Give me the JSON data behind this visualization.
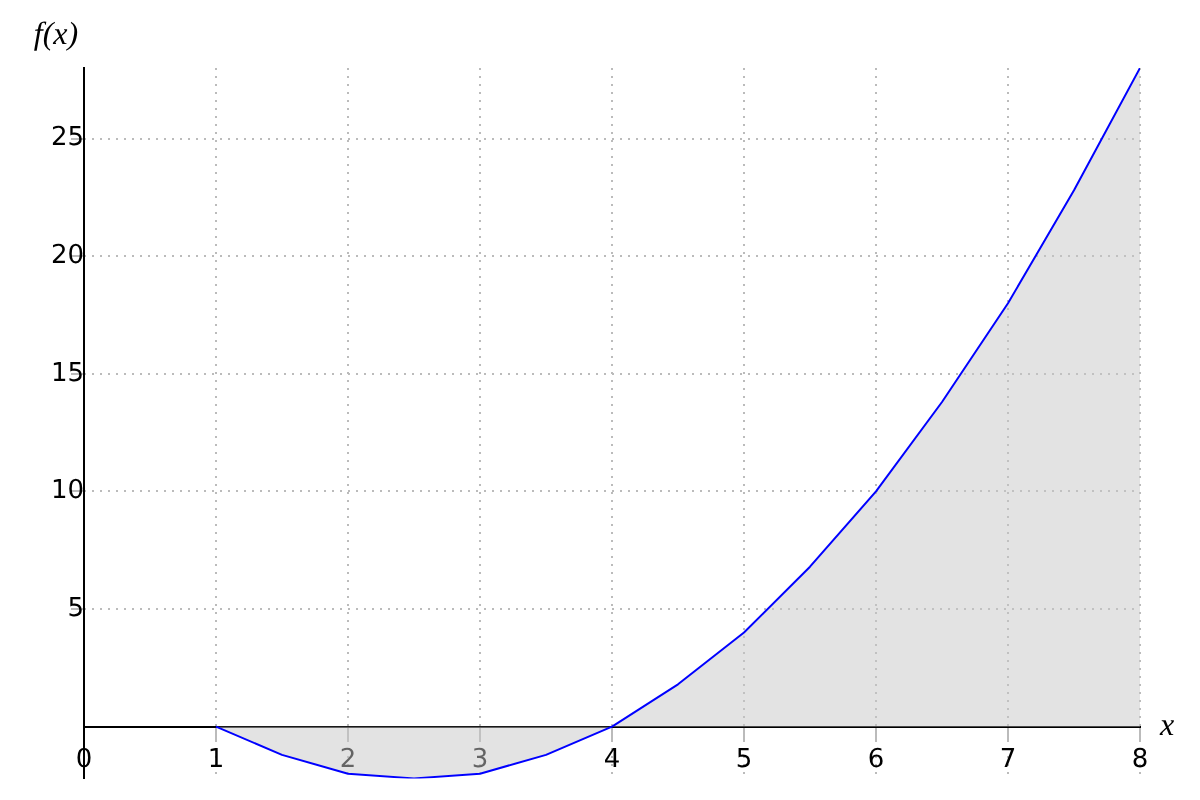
{
  "chart_data": {
    "type": "area",
    "xlabel": "x",
    "ylabel": "f(x)",
    "x": [
      1,
      1.5,
      2,
      2.5,
      3,
      3.5,
      4,
      4.5,
      5,
      5.5,
      6,
      6.5,
      7,
      7.5,
      8
    ],
    "series": [
      {
        "color": "#0000ff",
        "values": [
          0,
          -1.2,
          -2,
          -2.2,
          -2,
          -1.2,
          0,
          1.8,
          4,
          6.8,
          10,
          13.8,
          18,
          22.8,
          28
        ]
      }
    ],
    "xlim": [
      0,
      8
    ],
    "xticks": [
      0,
      1,
      2,
      3,
      4,
      5,
      6,
      7,
      8
    ],
    "ylim": [
      -2.2,
      28
    ],
    "yticks": [
      5,
      10,
      15,
      20,
      25
    ],
    "grid": true,
    "legend": false,
    "marker": "none",
    "line_style": "solid"
  }
}
